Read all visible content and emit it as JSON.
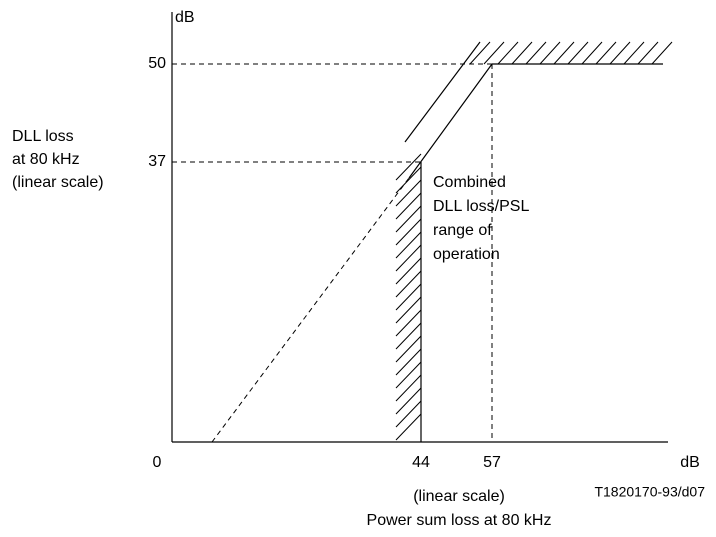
{
  "y_axis": {
    "unit": "dB",
    "ticks": [
      50,
      37
    ],
    "label": [
      "DLL loss",
      "at 80 kHz",
      "(linear scale)"
    ]
  },
  "x_axis": {
    "origin": 0,
    "ticks": [
      44,
      57
    ],
    "unit": "dB",
    "scale_note": "(linear scale)",
    "label": "Power sum loss at 80 kHz"
  },
  "region_label": [
    "Combined",
    "DLL loss/PSL",
    "range of",
    "operation"
  ],
  "figure_id": "T1820170-93/d07"
}
